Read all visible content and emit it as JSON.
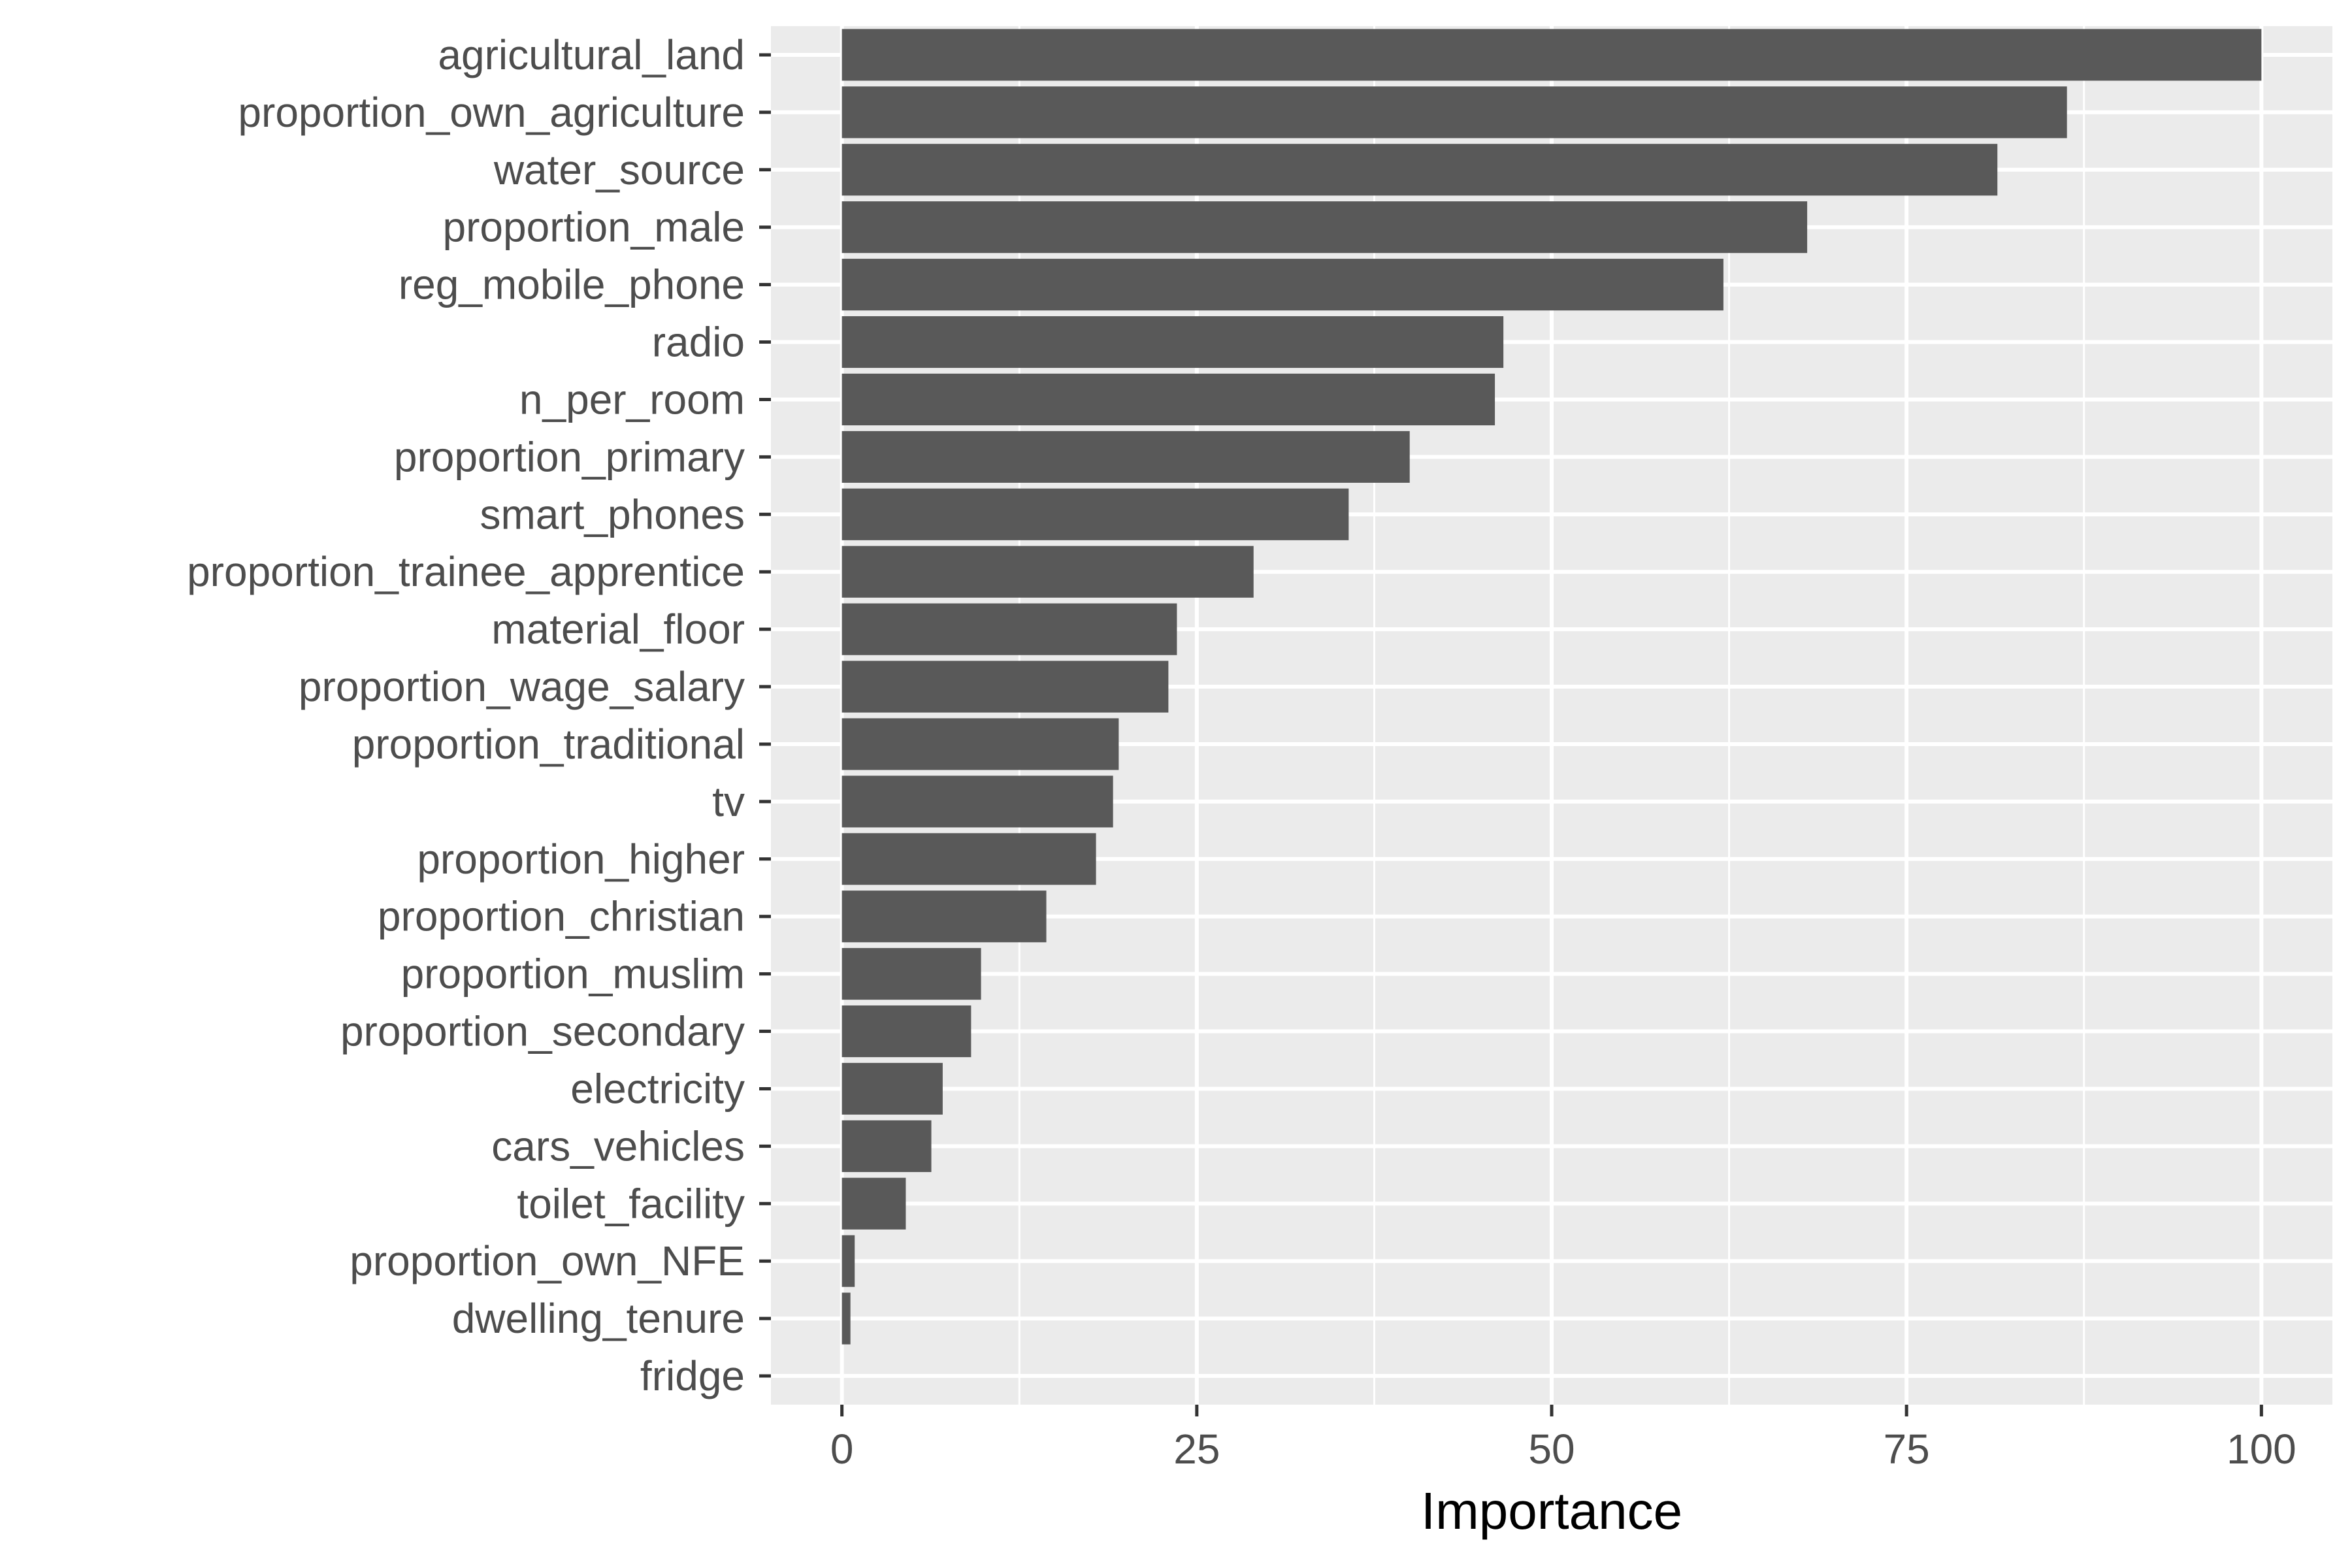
{
  "chart_data": {
    "type": "bar",
    "orientation": "horizontal",
    "title": "",
    "xlabel": "Importance",
    "ylabel": "",
    "xlim": [
      -5,
      105
    ],
    "xticks": [
      0,
      25,
      50,
      75,
      100
    ],
    "grid": true,
    "legend": "none",
    "colors": {
      "bar": "#595959",
      "panel": "#ebebeb",
      "grid": "#ffffff"
    },
    "categories": [
      "agricultural_land",
      "proportion_own_agriculture",
      "water_source",
      "proportion_male",
      "reg_mobile_phone",
      "radio",
      "n_per_room",
      "proportion_primary",
      "smart_phones",
      "proportion_trainee_apprentice",
      "material_floor",
      "proportion_wage_salary",
      "proportion_traditional",
      "tv",
      "proportion_higher",
      "proportion_christian",
      "proportion_muslim",
      "proportion_secondary",
      "electricity",
      "cars_vehicles",
      "toilet_facility",
      "proportion_own_NFE",
      "dwelling_tenure",
      "fridge"
    ],
    "values": [
      100,
      86.3,
      81.4,
      68,
      62.1,
      46.6,
      46,
      40,
      35.7,
      29,
      23.6,
      23,
      19.5,
      19.1,
      17.9,
      14.4,
      9.8,
      9.1,
      7.1,
      6.3,
      4.5,
      0.9,
      0.6,
      0
    ]
  }
}
